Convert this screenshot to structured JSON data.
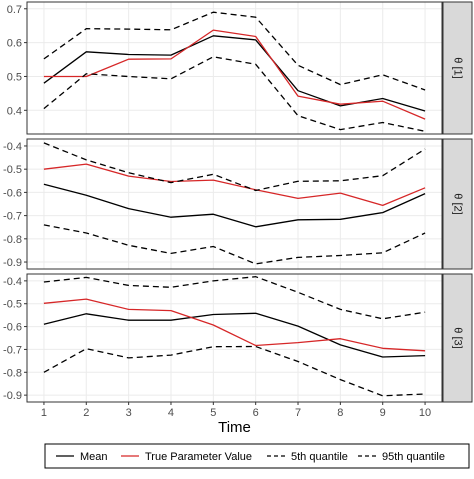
{
  "chart_data": {
    "type": "line",
    "xlabel": "Time",
    "x": [
      1,
      2,
      3,
      4,
      5,
      6,
      7,
      8,
      9,
      10
    ],
    "facets": [
      {
        "label": "θ [1]",
        "ylim": [
          0.33,
          0.72
        ],
        "yticks": [
          0.4,
          0.5,
          0.6,
          0.7
        ],
        "series": [
          {
            "name": "Mean",
            "values": [
              0.48,
              0.573,
              0.565,
              0.563,
              0.62,
              0.608,
              0.458,
              0.413,
              0.435,
              0.398
            ]
          },
          {
            "name": "True Parameter Value",
            "values": [
              0.5,
              0.5,
              0.551,
              0.552,
              0.637,
              0.618,
              0.442,
              0.418,
              0.427,
              0.374
            ]
          },
          {
            "name": "5th quantile",
            "values": [
              0.405,
              0.508,
              0.5,
              0.493,
              0.558,
              0.536,
              0.384,
              0.343,
              0.364,
              0.338
            ]
          },
          {
            "name": "95th quantile",
            "values": [
              0.552,
              0.641,
              0.64,
              0.638,
              0.69,
              0.675,
              0.533,
              0.476,
              0.505,
              0.46
            ]
          }
        ]
      },
      {
        "label": "θ [2]",
        "ylim": [
          -0.93,
          -0.37
        ],
        "yticks": [
          -0.4,
          -0.5,
          -0.6,
          -0.7,
          -0.8,
          -0.9
        ],
        "series": [
          {
            "name": "Mean",
            "values": [
              -0.565,
              -0.612,
              -0.67,
              -0.707,
              -0.694,
              -0.748,
              -0.718,
              -0.716,
              -0.687,
              -0.605
            ]
          },
          {
            "name": "True Parameter Value",
            "values": [
              -0.5,
              -0.478,
              -0.53,
              -0.553,
              -0.547,
              -0.589,
              -0.626,
              -0.603,
              -0.656,
              -0.58
            ]
          },
          {
            "name": "5th quantile",
            "values": [
              -0.74,
              -0.775,
              -0.828,
              -0.863,
              -0.833,
              -0.908,
              -0.88,
              -0.872,
              -0.86,
              -0.775
            ]
          },
          {
            "name": "95th quantile",
            "values": [
              -0.387,
              -0.46,
              -0.515,
              -0.558,
              -0.522,
              -0.592,
              -0.552,
              -0.55,
              -0.528,
              -0.413
            ]
          }
        ]
      },
      {
        "label": "θ [3]",
        "ylim": [
          -0.93,
          -0.37
        ],
        "yticks": [
          -0.4,
          -0.5,
          -0.6,
          -0.7,
          -0.8,
          -0.9
        ],
        "series": [
          {
            "name": "Mean",
            "values": [
              -0.59,
              -0.544,
              -0.572,
              -0.572,
              -0.547,
              -0.542,
              -0.598,
              -0.68,
              -0.733,
              -0.727
            ]
          },
          {
            "name": "True Parameter Value",
            "values": [
              -0.498,
              -0.48,
              -0.525,
              -0.53,
              -0.593,
              -0.683,
              -0.67,
              -0.653,
              -0.695,
              -0.706
            ]
          },
          {
            "name": "5th quantile",
            "values": [
              -0.8,
              -0.697,
              -0.737,
              -0.725,
              -0.688,
              -0.687,
              -0.753,
              -0.832,
              -0.903,
              -0.895
            ]
          },
          {
            "name": "95th quantile",
            "values": [
              -0.405,
              -0.385,
              -0.42,
              -0.428,
              -0.4,
              -0.382,
              -0.45,
              -0.525,
              -0.566,
              -0.537
            ]
          }
        ]
      }
    ],
    "legend": {
      "placement": "bottom",
      "entries": [
        {
          "name": "Mean",
          "color": "#000000",
          "style": "solid"
        },
        {
          "name": "True Parameter Value",
          "color": "#d62728",
          "style": "solid"
        },
        {
          "name": "5th quantile",
          "color": "#000000",
          "style": "dashed"
        },
        {
          "name": "95th quantile",
          "color": "#000000",
          "style": "dashed"
        }
      ]
    },
    "grid": true,
    "colors": {
      "mean": "#000000",
      "true": "#d62728",
      "quantile": "#000000",
      "grid": "#ebebeb",
      "strip": "#d9d9d9",
      "panel_border": "#333333"
    }
  }
}
